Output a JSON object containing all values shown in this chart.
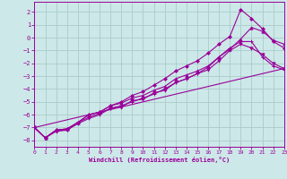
{
  "xlabel": "Windchill (Refroidissement éolien,°C)",
  "background_color": "#cde8e8",
  "grid_color": "#aacccc",
  "line_color": "#990099",
  "x_ticks": [
    0,
    1,
    2,
    3,
    4,
    5,
    6,
    7,
    8,
    9,
    10,
    11,
    12,
    13,
    14,
    15,
    16,
    17,
    18,
    19,
    20,
    21,
    22,
    23
  ],
  "y_ticks": [
    -8,
    -7,
    -6,
    -5,
    -4,
    -3,
    -2,
    -1,
    0,
    1,
    2
  ],
  "xlim": [
    0,
    23
  ],
  "ylim": [
    -8.5,
    2.8
  ],
  "line1_x": [
    0,
    1,
    2,
    3,
    4,
    5,
    6,
    7,
    8,
    9,
    10,
    11,
    12,
    13,
    14,
    15,
    16,
    17,
    18,
    19,
    20,
    21,
    22,
    23
  ],
  "line1_y": [
    -7.0,
    -7.8,
    -7.2,
    -7.2,
    -6.6,
    -6.2,
    -5.9,
    -5.5,
    -5.3,
    -5.0,
    -4.7,
    -4.4,
    -4.0,
    -3.5,
    -3.2,
    -2.8,
    -2.3,
    -1.5,
    -0.8,
    -0.3,
    -0.3,
    -1.5,
    -2.2,
    -2.5
  ],
  "line2_x": [
    0,
    1,
    2,
    3,
    4,
    5,
    6,
    7,
    8,
    9,
    10,
    11,
    12,
    13,
    14,
    15,
    16,
    17,
    18,
    19,
    20,
    21,
    22,
    23
  ],
  "line2_y": [
    -7.0,
    -7.8,
    -7.3,
    -7.2,
    -6.7,
    -6.3,
    -6.0,
    -5.5,
    -5.4,
    -4.9,
    -4.8,
    -4.3,
    -4.1,
    -3.5,
    -3.2,
    -2.8,
    -2.5,
    -1.8,
    -1.0,
    -0.5,
    -0.8,
    -1.3,
    -2.0,
    -2.4
  ],
  "line3_x": [
    0,
    1,
    2,
    3,
    4,
    5,
    6,
    7,
    8,
    9,
    10,
    11,
    12,
    13,
    14,
    15,
    16,
    17,
    18,
    19,
    20,
    21,
    22,
    23
  ],
  "line3_y": [
    -7.0,
    -7.8,
    -7.2,
    -7.1,
    -6.6,
    -6.0,
    -5.8,
    -5.3,
    -5.1,
    -4.7,
    -4.5,
    -4.1,
    -3.8,
    -3.2,
    -2.9,
    -2.6,
    -2.2,
    -1.5,
    -0.9,
    -0.1,
    0.8,
    0.5,
    -0.2,
    -0.5
  ],
  "line4_x": [
    0,
    1,
    2,
    3,
    4,
    5,
    6,
    7,
    8,
    9,
    10,
    11,
    12,
    13,
    14,
    15,
    16,
    17,
    18,
    19,
    20,
    21,
    22,
    23
  ],
  "line4_y": [
    -7.0,
    -7.8,
    -7.2,
    -7.1,
    -6.6,
    -6.0,
    -5.8,
    -5.3,
    -5.0,
    -4.5,
    -4.2,
    -3.7,
    -3.2,
    -2.6,
    -2.2,
    -1.8,
    -1.2,
    -0.5,
    0.1,
    2.2,
    1.5,
    0.7,
    -0.3,
    -0.8
  ],
  "line5_x": [
    0,
    23
  ],
  "line5_y": [
    -7.0,
    -2.4
  ]
}
